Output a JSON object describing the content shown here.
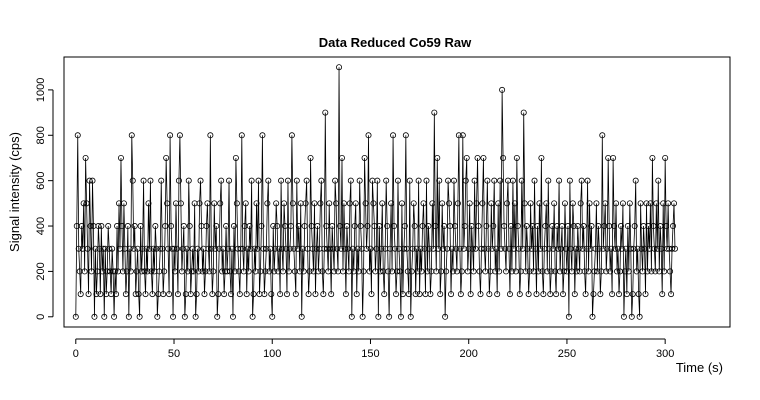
{
  "chart_data": {
    "type": "line",
    "title": "Data Reduced Co59 Raw",
    "xlabel": "Time (s)",
    "ylabel": "Signal intensity (cps)",
    "xlim": [
      -6,
      333
    ],
    "ylim": [
      -45,
      1145
    ],
    "x_ticks": [
      0,
      50,
      100,
      150,
      200,
      250,
      300
    ],
    "y_ticks": [
      0,
      200,
      400,
      600,
      800,
      1000
    ],
    "grid": false,
    "legend": "none",
    "markers": "open-circle",
    "x_step": 0.5,
    "x_start": 0,
    "series": [
      {
        "values": [
          0,
          400,
          800,
          300,
          200,
          100,
          400,
          300,
          500,
          200,
          700,
          500,
          300,
          100,
          600,
          400,
          200,
          600,
          400,
          0,
          300,
          100,
          200,
          400,
          300,
          100,
          400,
          200,
          300,
          0,
          300,
          100,
          200,
          400,
          300,
          200,
          100,
          300,
          200,
          0,
          200,
          100,
          400,
          200,
          500,
          300,
          700,
          400,
          200,
          500,
          300,
          100,
          200,
          400,
          0,
          300,
          200,
          800,
          600,
          300,
          400,
          100,
          200,
          300,
          100,
          0,
          400,
          200,
          300,
          600,
          200,
          100,
          300,
          200,
          500,
          300,
          600,
          200,
          100,
          300,
          200,
          400,
          300,
          0,
          100,
          200,
          300,
          600,
          300,
          100,
          200,
          400,
          700,
          500,
          300,
          100,
          800,
          400,
          300,
          0,
          300,
          200,
          500,
          300,
          100,
          600,
          800,
          500,
          200,
          300,
          400,
          0,
          100,
          300,
          200,
          600,
          400,
          100,
          200,
          300,
          200,
          500,
          0,
          100,
          300,
          200,
          500,
          600,
          400,
          200,
          300,
          100,
          200,
          400,
          500,
          300,
          200,
          800,
          300,
          100,
          200,
          500,
          300,
          400,
          0,
          100,
          300,
          500,
          600,
          200,
          300,
          100,
          200,
          400,
          200,
          300,
          600,
          200,
          100,
          300,
          0,
          400,
          200,
          700,
          500,
          300,
          200,
          100,
          300,
          800,
          300,
          200,
          400,
          500,
          100,
          300,
          200,
          400,
          300,
          600,
          0,
          100,
          300,
          200,
          500,
          300,
          600,
          100,
          200,
          400,
          800,
          300,
          100,
          200,
          300,
          500,
          600,
          200,
          300,
          100,
          0,
          400,
          200,
          300,
          500,
          400,
          200,
          300,
          100,
          600,
          300,
          200,
          500,
          400,
          300,
          100,
          600,
          200,
          300,
          400,
          800,
          500,
          300,
          200,
          100,
          600,
          300,
          400,
          200,
          500,
          0,
          300,
          200,
          400,
          500,
          600,
          300,
          100,
          200,
          700,
          400,
          300,
          200,
          500,
          100,
          300,
          400,
          200,
          300,
          500,
          600,
          200,
          100,
          300,
          900,
          400,
          300,
          200,
          500,
          300,
          100,
          400,
          300,
          200,
          600,
          500,
          300,
          200,
          1100,
          400,
          300,
          700,
          200,
          500,
          300,
          100,
          400,
          300,
          200,
          500,
          600,
          0,
          300,
          200,
          400,
          500,
          100,
          300,
          200,
          600,
          400,
          300,
          0,
          200,
          700,
          500,
          300,
          400,
          800,
          200,
          300,
          100,
          600,
          500,
          400,
          200,
          300,
          600,
          0,
          400,
          200,
          300,
          500,
          200,
          100,
          300,
          600,
          400,
          200,
          0,
          300,
          500,
          200,
          800,
          400,
          300,
          100,
          200,
          600,
          300,
          200,
          0,
          500,
          100,
          300,
          400,
          800,
          300,
          200,
          100,
          600,
          0,
          200,
          300,
          500,
          400,
          100,
          300,
          200,
          600,
          100,
          300,
          200,
          400,
          500,
          300,
          100,
          600,
          200,
          400,
          300,
          100,
          200,
          500,
          300,
          900,
          400,
          200,
          700,
          300,
          600,
          100,
          200,
          500,
          300,
          400,
          0,
          200,
          300,
          600,
          500,
          400,
          100,
          300,
          200,
          600,
          400,
          300,
          200,
          500,
          800,
          300,
          100,
          200,
          800,
          300,
          400,
          600,
          700,
          200,
          300,
          500,
          100,
          400,
          300,
          200,
          600,
          300,
          500,
          700,
          400,
          200,
          100,
          300,
          500,
          700,
          300,
          200,
          400,
          600,
          300,
          100,
          200,
          500,
          300,
          400,
          600,
          200,
          300,
          100,
          500,
          200,
          600,
          300,
          1000,
          700,
          400,
          300,
          200,
          500,
          600,
          300,
          100,
          400,
          200,
          600,
          300,
          500,
          200,
          700,
          400,
          300,
          100,
          200,
          600,
          300,
          900,
          500,
          200,
          400,
          300,
          100,
          200,
          500,
          300,
          400,
          200,
          600,
          300,
          100,
          400,
          200,
          500,
          300,
          700,
          200,
          100,
          300,
          400,
          500,
          200,
          600,
          300,
          100,
          200,
          400,
          300,
          500,
          200,
          100,
          400,
          300,
          600,
          200,
          300,
          400,
          100,
          200,
          500,
          300,
          200,
          400,
          0,
          600,
          300,
          200,
          500,
          400,
          100,
          300,
          200,
          400,
          300,
          200,
          500,
          600,
          300,
          400,
          200,
          100,
          300,
          600,
          200,
          500,
          300,
          400,
          0,
          100,
          200,
          300,
          500,
          200,
          400,
          300,
          100,
          200,
          800,
          300,
          400,
          500,
          200,
          300,
          700,
          400,
          200,
          300,
          100,
          700,
          400,
          300,
          500,
          200,
          300,
          100,
          200,
          400,
          300,
          500,
          0,
          200,
          300,
          100,
          400,
          200,
          500,
          300,
          0,
          100,
          300,
          400,
          600,
          200,
          300,
          100,
          0,
          500,
          300,
          200,
          400,
          300,
          100,
          500,
          200,
          400,
          300,
          500,
          200,
          700,
          400,
          300,
          200,
          500,
          300,
          600,
          200,
          400,
          300,
          100,
          500,
          200,
          700,
          400,
          300,
          500,
          300,
          200,
          100,
          300,
          400,
          500,
          300
        ]
      }
    ]
  }
}
